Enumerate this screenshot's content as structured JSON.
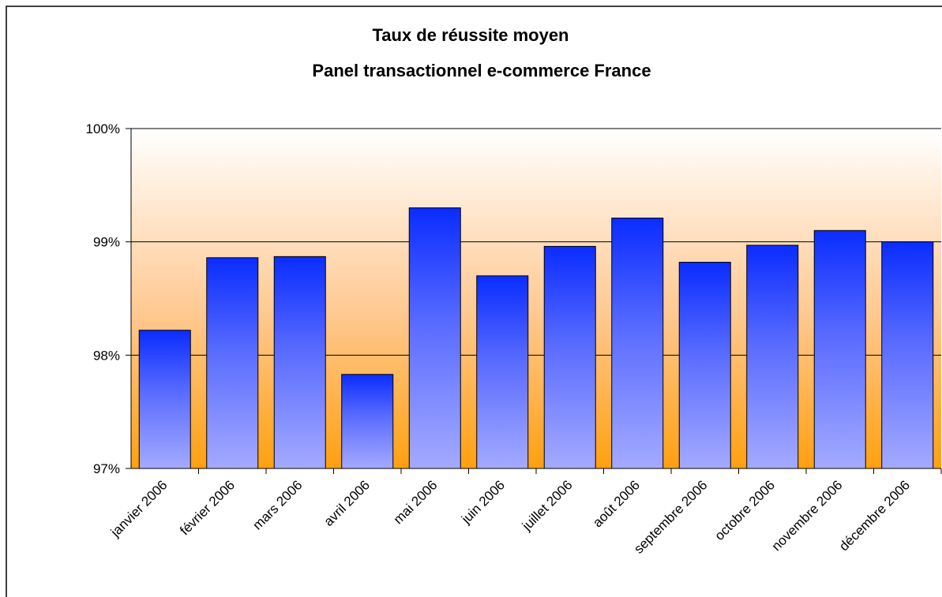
{
  "chart_data": {
    "type": "bar",
    "title": "Taux de réussite moyen",
    "subtitle": "Panel transactionnel e-commerce France",
    "categories": [
      "janvier 2006",
      "février 2006",
      "mars 2006",
      "avril 2006",
      "mai 2006",
      "juin 2006",
      "juillet 2006",
      "août 2006",
      "septembre 2006",
      "octobre 2006",
      "novembre 2006",
      "décembre 2006"
    ],
    "values": [
      98.22,
      98.86,
      98.87,
      97.83,
      99.3,
      98.7,
      98.96,
      99.21,
      98.82,
      98.97,
      99.1,
      99.0
    ],
    "color": "#0a2cff",
    "ylim": [
      97,
      100
    ],
    "yticks": [
      {
        "value": 97,
        "label": "97%"
      },
      {
        "value": 98,
        "label": "98%"
      },
      {
        "value": 99,
        "label": "99%"
      },
      {
        "value": 100,
        "label": "100%"
      }
    ],
    "grid": true
  }
}
